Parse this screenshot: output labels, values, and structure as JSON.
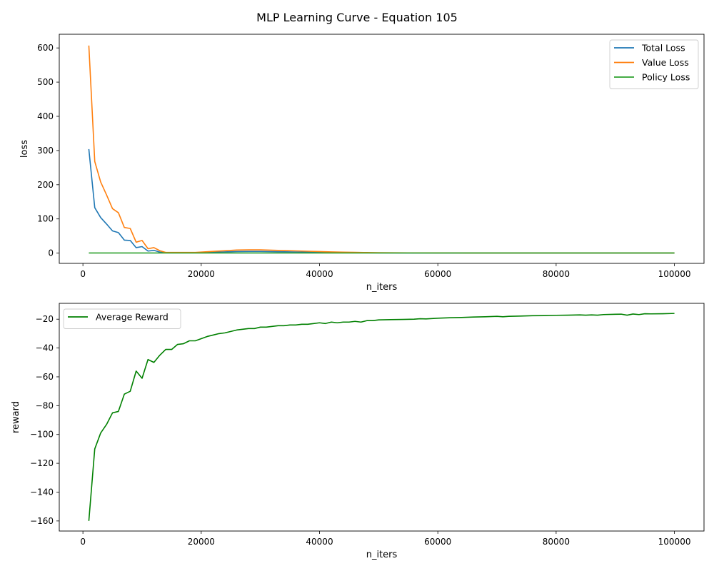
{
  "figure": {
    "title": "MLP Learning Curve - Equation 105"
  },
  "chart_data": [
    {
      "type": "line",
      "xlabel": "n_iters",
      "ylabel": "loss",
      "xlim": [
        -4000,
        105000
      ],
      "ylim": [
        -30,
        640
      ],
      "xticks": [
        0,
        20000,
        40000,
        60000,
        80000,
        100000
      ],
      "xtick_labels": [
        "0",
        "20000",
        "40000",
        "60000",
        "80000",
        "100000"
      ],
      "yticks": [
        0,
        100,
        200,
        300,
        400,
        500,
        600
      ],
      "ytick_labels": [
        "0",
        "100",
        "200",
        "300",
        "400",
        "500",
        "600"
      ],
      "legend_position": "top-right",
      "grid": false,
      "x": [
        1000,
        2000,
        3000,
        4000,
        5000,
        6000,
        7000,
        8000,
        9000,
        10000,
        11000,
        12000,
        13000,
        14000,
        15000,
        16000,
        17000,
        18000,
        19000,
        20000,
        22000,
        24000,
        26000,
        28000,
        30000,
        32000,
        34000,
        36000,
        38000,
        40000,
        42000,
        44000,
        46000,
        48000,
        50000,
        55000,
        60000,
        65000,
        70000,
        75000,
        80000,
        85000,
        90000,
        95000,
        100000
      ],
      "series": [
        {
          "name": "Total Loss",
          "color": "#1f77b4",
          "values": [
            304,
            133,
            104,
            85,
            65,
            60,
            38,
            37,
            16,
            19,
            6,
            8,
            3,
            1,
            1,
            1,
            1,
            1,
            1,
            1.5,
            2.5,
            3.5,
            4.5,
            4.8,
            4.8,
            4.3,
            3.8,
            3.2,
            2.7,
            2.2,
            1.8,
            1.4,
            1.1,
            0.8,
            0.6,
            0.4,
            0.3,
            0.3,
            0.3,
            0.3,
            0.3,
            0.3,
            0.3,
            0.3,
            0.3
          ]
        },
        {
          "name": "Value Loss",
          "color": "#ff7f0e",
          "values": [
            607,
            268,
            208,
            170,
            130,
            118,
            75,
            72,
            32,
            37,
            13,
            16,
            7,
            2,
            2,
            2,
            2,
            2,
            2,
            3,
            5,
            7,
            9,
            9.5,
            9.5,
            8.5,
            7.5,
            6.5,
            5.5,
            4.5,
            3.5,
            2.8,
            2.2,
            1.6,
            1.2,
            0.8,
            0.6,
            0.5,
            0.5,
            0.5,
            0.5,
            0.5,
            0.5,
            0.5,
            0.5
          ]
        },
        {
          "name": "Policy Loss",
          "color": "#2ca02c",
          "values": [
            0.5,
            0.5,
            0.5,
            0.5,
            0.5,
            0.5,
            0.5,
            0.5,
            0.5,
            0.5,
            0.5,
            0.5,
            0.5,
            0.5,
            0.5,
            0.5,
            0.5,
            0.5,
            0.5,
            0.5,
            0.5,
            0.5,
            0.5,
            0.5,
            0.5,
            0.5,
            0.5,
            0.5,
            0.5,
            0.5,
            0.5,
            0.5,
            0.5,
            0.5,
            0.5,
            0.5,
            0.5,
            0.5,
            0.5,
            0.5,
            0.5,
            0.5,
            0.5,
            0.5,
            0.5
          ]
        }
      ]
    },
    {
      "type": "line",
      "xlabel": "n_iters",
      "ylabel": "reward",
      "xlim": [
        -4000,
        105000
      ],
      "ylim": [
        -167,
        -9
      ],
      "xticks": [
        0,
        20000,
        40000,
        60000,
        80000,
        100000
      ],
      "xtick_labels": [
        "0",
        "20000",
        "40000",
        "60000",
        "80000",
        "100000"
      ],
      "yticks": [
        -160,
        -140,
        -120,
        -100,
        -80,
        -60,
        -40,
        -20
      ],
      "ytick_labels": [
        "−160",
        "−140",
        "−120",
        "−100",
        "−80",
        "−60",
        "−40",
        "−20"
      ],
      "legend_position": "top-left",
      "grid": false,
      "x": [
        1000,
        2000,
        3000,
        4000,
        5000,
        6000,
        7000,
        8000,
        9000,
        10000,
        11000,
        12000,
        13000,
        14000,
        15000,
        16000,
        17000,
        18000,
        19000,
        20000,
        21000,
        22000,
        23000,
        24000,
        25000,
        26000,
        27000,
        28000,
        29000,
        30000,
        31000,
        32000,
        33000,
        34000,
        35000,
        36000,
        37000,
        38000,
        39000,
        40000,
        41000,
        42000,
        43000,
        44000,
        45000,
        46000,
        47000,
        48000,
        49000,
        50000,
        52000,
        54000,
        56000,
        57000,
        58000,
        60000,
        62000,
        64000,
        66000,
        68000,
        70000,
        71000,
        72000,
        74000,
        76000,
        78000,
        80000,
        82000,
        84000,
        85000,
        86000,
        87000,
        88000,
        90000,
        91000,
        92000,
        93000,
        94000,
        95000,
        96000,
        98000,
        100000
      ],
      "series": [
        {
          "name": "Average Reward",
          "color": "#008000",
          "values": [
            -160,
            -110,
            -99,
            -93,
            -85,
            -84,
            -72,
            -70,
            -56,
            -61,
            -48,
            -50,
            -45,
            -41,
            -41,
            -37.5,
            -37,
            -35,
            -35,
            -33.5,
            -32,
            -31,
            -30,
            -29.5,
            -28.5,
            -27.5,
            -27,
            -26.5,
            -26.5,
            -25.5,
            -25.5,
            -25,
            -24.5,
            -24.5,
            -24,
            -24,
            -23.5,
            -23.5,
            -23,
            -22.5,
            -23,
            -22,
            -22.5,
            -22,
            -22,
            -21.5,
            -22,
            -21,
            -21,
            -20.5,
            -20.3,
            -20.2,
            -20,
            -19.7,
            -19.8,
            -19.3,
            -19,
            -18.8,
            -18.5,
            -18.3,
            -18,
            -18.3,
            -18,
            -17.8,
            -17.6,
            -17.5,
            -17.3,
            -17.2,
            -17,
            -17.2,
            -17,
            -17.2,
            -16.8,
            -16.6,
            -16.5,
            -17.2,
            -16.4,
            -16.8,
            -16.2,
            -16.3,
            -16.2,
            -16
          ]
        }
      ]
    }
  ]
}
